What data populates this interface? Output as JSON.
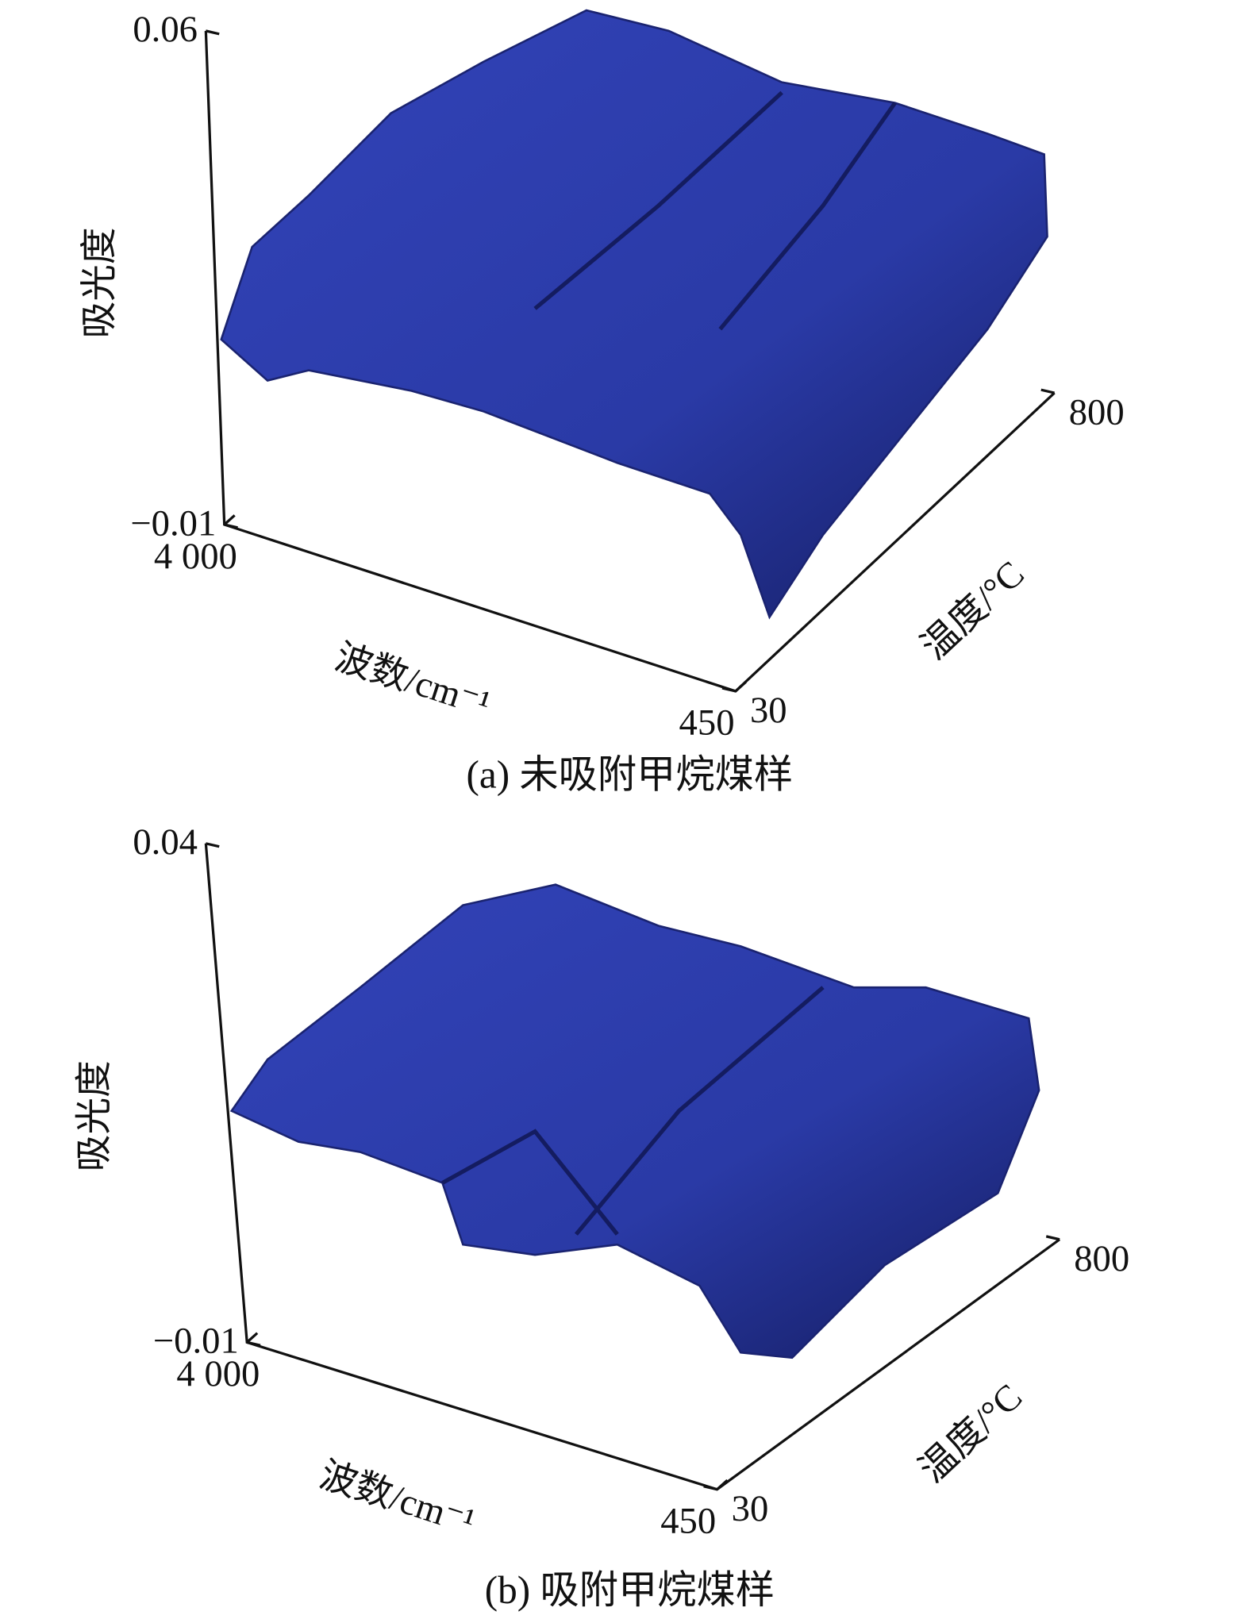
{
  "chart_data": [
    {
      "type": "surface3d",
      "caption": "(a) 未吸附甲烷煤样",
      "ylabel": "吸光度",
      "xlabel": "波数/cm⁻¹",
      "zlabel": "温度/°C",
      "ylim": [
        -0.01,
        0.06
      ],
      "yticks": [
        {
          "value": -0.01,
          "label": "−0.01"
        },
        0.06
      ],
      "xlim": [
        4000,
        450
      ],
      "xticks": [
        {
          "value": 4000,
          "label": "4 000"
        },
        450
      ],
      "zlim": [
        30,
        800
      ],
      "zticks": [
        30,
        800
      ],
      "color": "#2b3ba8"
    },
    {
      "type": "surface3d",
      "caption": "(b) 吸附甲烷煤样",
      "ylabel": "吸光度",
      "xlabel": "波数/cm⁻¹",
      "zlabel": "温度/°C",
      "ylim": [
        -0.01,
        0.04
      ],
      "yticks": [
        {
          "value": -0.01,
          "label": "−0.01"
        },
        0.04
      ],
      "xlim": [
        4000,
        450
      ],
      "xticks": [
        {
          "value": 4000,
          "label": "4 000"
        },
        450
      ],
      "zlim": [
        30,
        800
      ],
      "zticks": [
        30,
        800
      ],
      "color": "#2b3ba8"
    }
  ]
}
